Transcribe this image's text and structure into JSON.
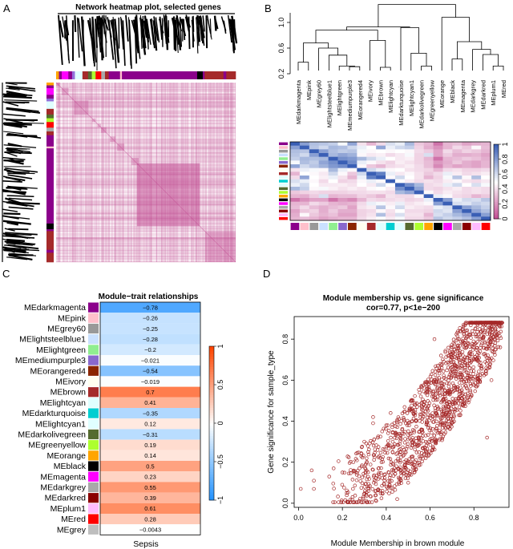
{
  "panels": {
    "A": {
      "letter": "A",
      "title": "Network heatmap plot, selected genes"
    },
    "B": {
      "letter": "B"
    },
    "C": {
      "letter": "C"
    },
    "D": {
      "letter": "D"
    }
  },
  "chart_data": [
    {
      "type": "heatmap",
      "panel": "A",
      "title": "Network heatmap plot, selected genes",
      "description": "TOM heatmap of selected genes with gene dendrograms on top and left, module color bars",
      "module_color_bar_order": [
        "#FFA500",
        "#8B008B",
        "#FF00FF",
        "#8B008B",
        "#9370DB",
        "#E0FFFF",
        "#A52A2A",
        "#556B2F",
        "#ADFF2F",
        "#FF0000",
        "#A9A9A9",
        "#8B0000",
        "#8B008B",
        "#000000",
        "#A52A2A"
      ],
      "color_low": "#FFFFFF",
      "color_high": "#C0478F"
    },
    {
      "type": "dendrogram",
      "panel": "B-top",
      "yaxis_ticks": [
        0.2,
        0.6,
        1.0
      ],
      "ylim": [
        0.1,
        1.35
      ],
      "leaves": [
        "MEdarkmagenta",
        "MEpink",
        "MEgrey60",
        "MElightsteelblue1",
        "MElightgreen",
        "MEmediumpurple3",
        "MEorangered4",
        "MEivory",
        "MEbrown",
        "MElightcyan",
        "MEdarkturquoise",
        "MElightcyan1",
        "MEdarkolivegreen",
        "MEgreenyellow",
        "MEorange",
        "MEblack",
        "MEmagenta",
        "MEdarkgrey",
        "MEdarkred",
        "MEplum1",
        "MEred"
      ]
    },
    {
      "type": "heatmap",
      "panel": "B-bottom",
      "description": "Eigengene adjacency heatmap",
      "colorbar_ticks": [
        0,
        0.2,
        0.4,
        0.6,
        0.8,
        1
      ],
      "colorbar_range": [
        0,
        1
      ],
      "module_colors": [
        "#8B008B",
        "#FFC0CB",
        "#999999",
        "#CAE1FF",
        "#90EE90",
        "#8968CD",
        "#8B2500",
        "#FFFFF0",
        "#A52A2A",
        "#E0FFFF",
        "#00CED1",
        "#E0FFFF",
        "#556B2F",
        "#ADFF2F",
        "#FFA500",
        "#000000",
        "#FF00FF",
        "#A9A9A9",
        "#8B0000",
        "#FFBBFF",
        "#FF0000"
      ],
      "values": [
        [
          1.0,
          0.8,
          0.7,
          0.68,
          0.65,
          0.52,
          0.78,
          0.42,
          0.3,
          0.4,
          0.6,
          0.55,
          0.72,
          0.35,
          0.3,
          0.12,
          0.3,
          0.32,
          0.25,
          0.28,
          0.3
        ],
        [
          0.8,
          1.0,
          0.68,
          0.62,
          0.72,
          0.7,
          0.62,
          0.55,
          0.5,
          0.78,
          0.55,
          0.62,
          0.65,
          0.38,
          0.28,
          0.2,
          0.3,
          0.4,
          0.35,
          0.48,
          0.32
        ],
        [
          0.7,
          0.68,
          1.0,
          0.8,
          0.7,
          0.66,
          0.68,
          0.52,
          0.48,
          0.5,
          0.48,
          0.5,
          0.48,
          0.4,
          0.36,
          0.25,
          0.4,
          0.32,
          0.38,
          0.35,
          0.3
        ],
        [
          0.68,
          0.62,
          0.8,
          1.0,
          0.72,
          0.78,
          0.74,
          0.48,
          0.44,
          0.46,
          0.4,
          0.44,
          0.52,
          0.38,
          0.6,
          0.25,
          0.36,
          0.28,
          0.28,
          0.3,
          0.25
        ],
        [
          0.65,
          0.72,
          0.7,
          0.72,
          1.0,
          0.85,
          0.82,
          0.72,
          0.62,
          0.55,
          0.5,
          0.44,
          0.46,
          0.38,
          0.3,
          0.12,
          0.3,
          0.32,
          0.36,
          0.33,
          0.28
        ],
        [
          0.52,
          0.7,
          0.66,
          0.78,
          0.85,
          1.0,
          0.86,
          0.55,
          0.48,
          0.42,
          0.38,
          0.45,
          0.42,
          0.38,
          0.32,
          0.22,
          0.28,
          0.35,
          0.28,
          0.25,
          0.3
        ],
        [
          0.78,
          0.62,
          0.68,
          0.74,
          0.82,
          0.86,
          1.0,
          0.48,
          0.35,
          0.3,
          0.4,
          0.42,
          0.45,
          0.4,
          0.32,
          0.18,
          0.3,
          0.25,
          0.28,
          0.25,
          0.3
        ],
        [
          0.42,
          0.55,
          0.52,
          0.48,
          0.72,
          0.55,
          0.48,
          1.0,
          0.62,
          0.55,
          0.48,
          0.5,
          0.42,
          0.4,
          0.38,
          0.3,
          0.4,
          0.42,
          0.38,
          0.38,
          0.4
        ],
        [
          0.3,
          0.5,
          0.48,
          0.44,
          0.62,
          0.48,
          0.35,
          0.62,
          1.0,
          0.9,
          0.55,
          0.44,
          0.48,
          0.42,
          0.35,
          0.4,
          0.55,
          0.45,
          0.4,
          0.42,
          0.45
        ],
        [
          0.4,
          0.78,
          0.5,
          0.46,
          0.55,
          0.42,
          0.3,
          0.55,
          0.9,
          1.0,
          0.48,
          0.62,
          0.5,
          0.42,
          0.3,
          0.38,
          0.52,
          0.68,
          0.48,
          0.7,
          0.5
        ],
        [
          0.6,
          0.55,
          0.48,
          0.4,
          0.5,
          0.38,
          0.4,
          0.48,
          0.55,
          0.48,
          1.0,
          0.5,
          0.45,
          0.4,
          0.42,
          0.4,
          0.45,
          0.48,
          0.42,
          0.4,
          0.44
        ],
        [
          0.55,
          0.62,
          0.5,
          0.44,
          0.44,
          0.45,
          0.42,
          0.5,
          0.44,
          0.62,
          0.5,
          1.0,
          0.85,
          0.72,
          0.4,
          0.42,
          0.55,
          0.62,
          0.5,
          0.6,
          0.52
        ],
        [
          0.72,
          0.65,
          0.48,
          0.52,
          0.46,
          0.42,
          0.45,
          0.42,
          0.48,
          0.5,
          0.45,
          0.85,
          1.0,
          0.78,
          0.4,
          0.38,
          0.42,
          0.45,
          0.4,
          0.42,
          0.4
        ],
        [
          0.35,
          0.38,
          0.4,
          0.38,
          0.38,
          0.38,
          0.4,
          0.4,
          0.42,
          0.42,
          0.4,
          0.72,
          0.78,
          1.0,
          0.48,
          0.4,
          0.45,
          0.42,
          0.4,
          0.42,
          0.4
        ],
        [
          0.3,
          0.28,
          0.36,
          0.6,
          0.3,
          0.32,
          0.32,
          0.38,
          0.35,
          0.3,
          0.42,
          0.4,
          0.4,
          0.48,
          1.0,
          0.55,
          0.48,
          0.4,
          0.38,
          0.3,
          0.35
        ],
        [
          0.12,
          0.2,
          0.25,
          0.25,
          0.12,
          0.22,
          0.18,
          0.3,
          0.4,
          0.38,
          0.4,
          0.42,
          0.38,
          0.4,
          0.55,
          1.0,
          0.8,
          0.55,
          0.62,
          0.6,
          0.68
        ],
        [
          0.3,
          0.3,
          0.4,
          0.36,
          0.3,
          0.28,
          0.3,
          0.4,
          0.55,
          0.52,
          0.45,
          0.55,
          0.42,
          0.45,
          0.48,
          0.8,
          1.0,
          0.6,
          0.58,
          0.65,
          0.62
        ],
        [
          0.32,
          0.4,
          0.32,
          0.28,
          0.32,
          0.35,
          0.25,
          0.42,
          0.45,
          0.68,
          0.48,
          0.62,
          0.45,
          0.42,
          0.4,
          0.55,
          0.6,
          1.0,
          0.8,
          0.72,
          0.65
        ],
        [
          0.25,
          0.35,
          0.38,
          0.28,
          0.36,
          0.28,
          0.28,
          0.38,
          0.4,
          0.48,
          0.42,
          0.5,
          0.4,
          0.4,
          0.38,
          0.62,
          0.58,
          0.8,
          1.0,
          0.78,
          0.7
        ],
        [
          0.28,
          0.48,
          0.35,
          0.3,
          0.33,
          0.25,
          0.25,
          0.38,
          0.42,
          0.7,
          0.4,
          0.6,
          0.42,
          0.42,
          0.3,
          0.6,
          0.65,
          0.72,
          0.78,
          1.0,
          0.8
        ],
        [
          0.3,
          0.32,
          0.3,
          0.25,
          0.28,
          0.3,
          0.3,
          0.4,
          0.45,
          0.5,
          0.44,
          0.52,
          0.4,
          0.4,
          0.35,
          0.68,
          0.62,
          0.65,
          0.7,
          0.8,
          1.0
        ]
      ],
      "color_low": "#C0478F",
      "color_mid": "#FFFFFF",
      "color_high": "#3A5FB5"
    },
    {
      "type": "heatmap",
      "panel": "C",
      "title": "Module−trait relationships",
      "xlabel": "Sepsis",
      "rows": [
        {
          "module": "MEdarkmagenta",
          "color": "#8B008B",
          "value": -0.78,
          "label": "−0.78"
        },
        {
          "module": "MEpink",
          "color": "#FFC0CB",
          "value": -0.26,
          "label": "−0.26"
        },
        {
          "module": "MEgrey60",
          "color": "#999999",
          "value": -0.25,
          "label": "−0.25"
        },
        {
          "module": "MElightsteelblue1",
          "color": "#CAE1FF",
          "value": -0.28,
          "label": "−0.28"
        },
        {
          "module": "MElightgreen",
          "color": "#90EE90",
          "value": -0.2,
          "label": "−0.2"
        },
        {
          "module": "MEmediumpurple3",
          "color": "#8968CD",
          "value": -0.021,
          "label": "−0.021"
        },
        {
          "module": "MEorangered4",
          "color": "#8B2500",
          "value": -0.54,
          "label": "−0.54"
        },
        {
          "module": "MEivory",
          "color": "#FFFFF0",
          "value": -0.019,
          "label": "−0.019"
        },
        {
          "module": "MEbrown",
          "color": "#A52A2A",
          "value": 0.7,
          "label": "0.7"
        },
        {
          "module": "MElightcyan",
          "color": "#E0FFFF",
          "value": 0.41,
          "label": "0.41"
        },
        {
          "module": "MEdarkturquoise",
          "color": "#00CED1",
          "value": -0.35,
          "label": "−0.35"
        },
        {
          "module": "MElightcyan1",
          "color": "#E0FFFF",
          "value": 0.12,
          "label": "0.12"
        },
        {
          "module": "MEdarkolivegreen",
          "color": "#556B2F",
          "value": -0.31,
          "label": "−0.31"
        },
        {
          "module": "MEgreenyellow",
          "color": "#ADFF2F",
          "value": 0.19,
          "label": "0.19"
        },
        {
          "module": "MEorange",
          "color": "#FFA500",
          "value": 0.14,
          "label": "0.14"
        },
        {
          "module": "MEblack",
          "color": "#000000",
          "value": 0.5,
          "label": "0.5"
        },
        {
          "module": "MEmagenta",
          "color": "#FF00FF",
          "value": 0.23,
          "label": "0.23"
        },
        {
          "module": "MEdarkgrey",
          "color": "#A9A9A9",
          "value": 0.55,
          "label": "0.55"
        },
        {
          "module": "MEdarkred",
          "color": "#8B0000",
          "value": 0.39,
          "label": "0.39"
        },
        {
          "module": "MEplum1",
          "color": "#FFBBFF",
          "value": 0.61,
          "label": "0.61"
        },
        {
          "module": "MEred",
          "color": "#FF0000",
          "value": 0.28,
          "label": "0.28"
        },
        {
          "module": "MEgrey",
          "color": "#BEBEBE",
          "value": -0.0043,
          "label": "−0.0043"
        }
      ],
      "colorbar_ticks": [
        {
          "v": 1,
          "label": "1"
        },
        {
          "v": 0.5,
          "label": "0.5"
        },
        {
          "v": 0,
          "label": "0"
        },
        {
          "v": -0.5,
          "label": "−0.5"
        },
        {
          "v": -1,
          "label": "−1"
        }
      ],
      "colorbar_range": [
        -1,
        1
      ],
      "color_neg": "#1E90FF",
      "color_mid": "#FFFFFF",
      "color_pos": "#FF4500"
    },
    {
      "type": "scatter",
      "panel": "D",
      "title": "Module membership vs. gene significance",
      "subtitle": "cor=0.77, p<1e−200",
      "xlabel": "Module Membership in brown module",
      "ylabel": "Gene significance for sample_type",
      "xlim": [
        -0.02,
        0.96
      ],
      "ylim": [
        -0.02,
        0.91
      ],
      "xticks": [
        0.0,
        0.2,
        0.4,
        0.6,
        0.8
      ],
      "xtick_labels": [
        "0.0",
        "0.2",
        "0.4",
        "0.6",
        "0.8"
      ],
      "yticks": [
        0.0,
        0.2,
        0.4,
        0.6,
        0.8
      ],
      "ytick_labels": [
        "0.0",
        "0.2",
        "0.4",
        "0.6",
        "0.8"
      ],
      "point_color": "#A52A2A",
      "n_points_approx": 1500,
      "correlation": 0.77,
      "sample_points": [
        [
          0.01,
          0.07
        ],
        [
          0.06,
          0.16
        ],
        [
          0.07,
          0.11
        ],
        [
          0.07,
          0.07
        ],
        [
          0.14,
          0.13
        ],
        [
          0.16,
          0.17
        ],
        [
          0.2,
          0.15
        ],
        [
          0.22,
          0.05
        ],
        [
          0.25,
          0.2
        ],
        [
          0.3,
          0.3
        ],
        [
          0.34,
          0.42
        ],
        [
          0.34,
          0.39
        ],
        [
          0.4,
          0.38
        ],
        [
          0.42,
          0.44
        ],
        [
          0.45,
          0.02
        ],
        [
          0.5,
          0.1
        ],
        [
          0.52,
          0.3
        ],
        [
          0.55,
          0.48
        ],
        [
          0.6,
          0.55
        ],
        [
          0.62,
          0.8
        ],
        [
          0.65,
          0.72
        ],
        [
          0.7,
          0.65
        ],
        [
          0.75,
          0.85
        ],
        [
          0.78,
          0.88
        ],
        [
          0.8,
          0.7
        ],
        [
          0.85,
          0.78
        ],
        [
          0.88,
          0.6
        ],
        [
          0.9,
          0.75
        ],
        [
          0.92,
          0.76
        ],
        [
          0.86,
          0.32
        ]
      ]
    }
  ],
  "colorbars": {
    "B": {
      "ticks": [
        "0",
        "0.2",
        "0.4",
        "0.6",
        "0.8",
        "1"
      ]
    },
    "C": {
      "ticks": [
        "1",
        "0.5",
        "0",
        "−0.5",
        "−1"
      ]
    }
  }
}
